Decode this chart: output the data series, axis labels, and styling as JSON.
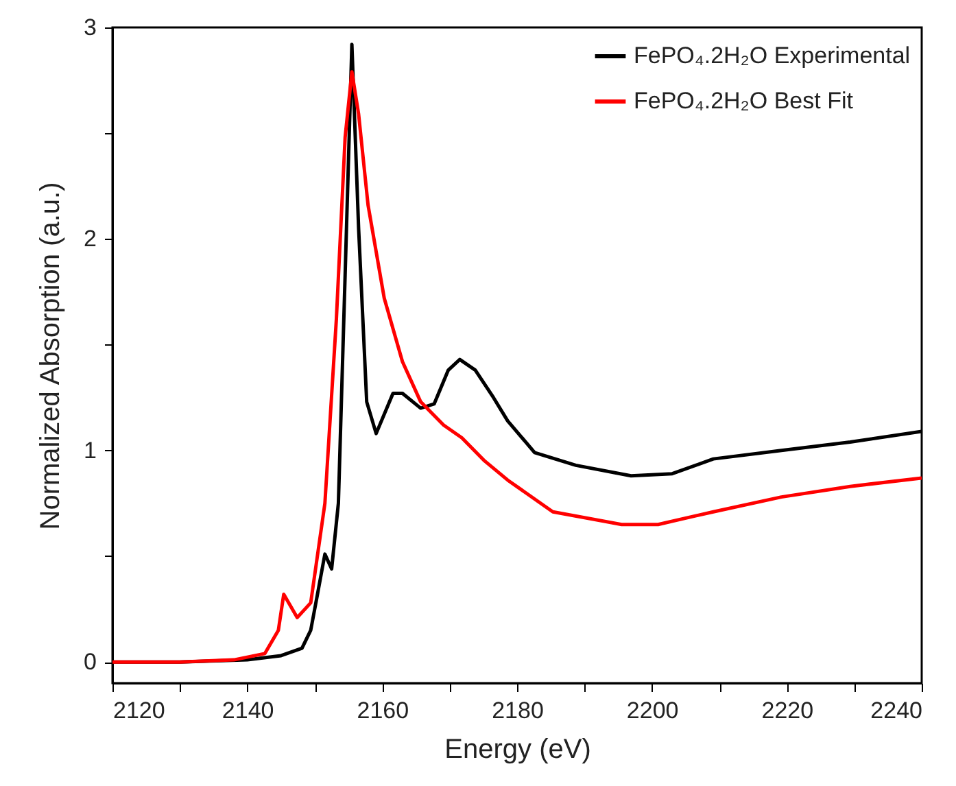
{
  "chart_data": {
    "type": "line",
    "xlabel": "Energy (eV)",
    "ylabel": "Normalized Absorption (a.u.)",
    "xlim": [
      2120,
      2240
    ],
    "ylim": [
      -0.1,
      3
    ],
    "xticks": [
      2120,
      {
        "value": 2130,
        "label": null
      },
      2140,
      {
        "value": 2150,
        "label": null
      },
      2160,
      {
        "value": 2170,
        "label": null
      },
      2180,
      {
        "value": 2190,
        "label": null
      },
      2200,
      {
        "value": 2210,
        "label": null
      },
      2220,
      {
        "value": 2230,
        "label": null
      },
      2240
    ],
    "yticks": [
      0,
      {
        "value": 0.5,
        "label": null
      },
      1,
      {
        "value": 1.5,
        "label": null
      },
      2,
      {
        "value": 2.5,
        "label": null
      },
      3
    ],
    "grid": false,
    "legend": "top right",
    "marker": "none",
    "line_style": "solid",
    "series": [
      {
        "name": "FePO₄.2H₂O Experimental",
        "color": "#000000",
        "x": [
          2120,
          2130,
          2140,
          2145,
          2148.1,
          2149.4,
          2150.4,
          2151.5,
          2152.5,
          2153.5,
          2154.5,
          2155.5,
          2156.5,
          2157.7,
          2159.1,
          2161.6,
          2163,
          2165.7,
          2167.7,
          2169.8,
          2171.5,
          2173.8,
          2176.5,
          2178.6,
          2182.6,
          2188.7,
          2196.9,
          2203,
          2209.1,
          2219.2,
          2229.4,
          2240
        ],
        "values": [
          0,
          0,
          0.01,
          0.03,
          0.065,
          0.15,
          0.32,
          0.51,
          0.44,
          0.75,
          1.83,
          2.92,
          2.05,
          1.23,
          1.08,
          1.27,
          1.27,
          1.2,
          1.22,
          1.38,
          1.43,
          1.38,
          1.25,
          1.14,
          0.99,
          0.93,
          0.88,
          0.89,
          0.96,
          1.0,
          1.04,
          1.09
        ]
      },
      {
        "name": "FePO₄.2H₂O Best Fit",
        "color": "#ff0000",
        "x": [
          2120,
          2130,
          2138,
          2142.6,
          2144.6,
          2145.4,
          2147.4,
          2149.4,
          2151.5,
          2153.2,
          2154.5,
          2155.5,
          2156.5,
          2157.9,
          2160.3,
          2163,
          2165.7,
          2169.1,
          2171.8,
          2175.2,
          2178.6,
          2185.3,
          2195.5,
          2200.9,
          2209.1,
          2219.2,
          2229.4,
          2240
        ],
        "values": [
          0,
          0,
          0.01,
          0.04,
          0.15,
          0.32,
          0.21,
          0.28,
          0.75,
          1.62,
          2.48,
          2.79,
          2.59,
          2.16,
          1.72,
          1.42,
          1.23,
          1.12,
          1.06,
          0.95,
          0.86,
          0.71,
          0.65,
          0.65,
          0.71,
          0.78,
          0.83,
          0.87
        ]
      }
    ]
  }
}
